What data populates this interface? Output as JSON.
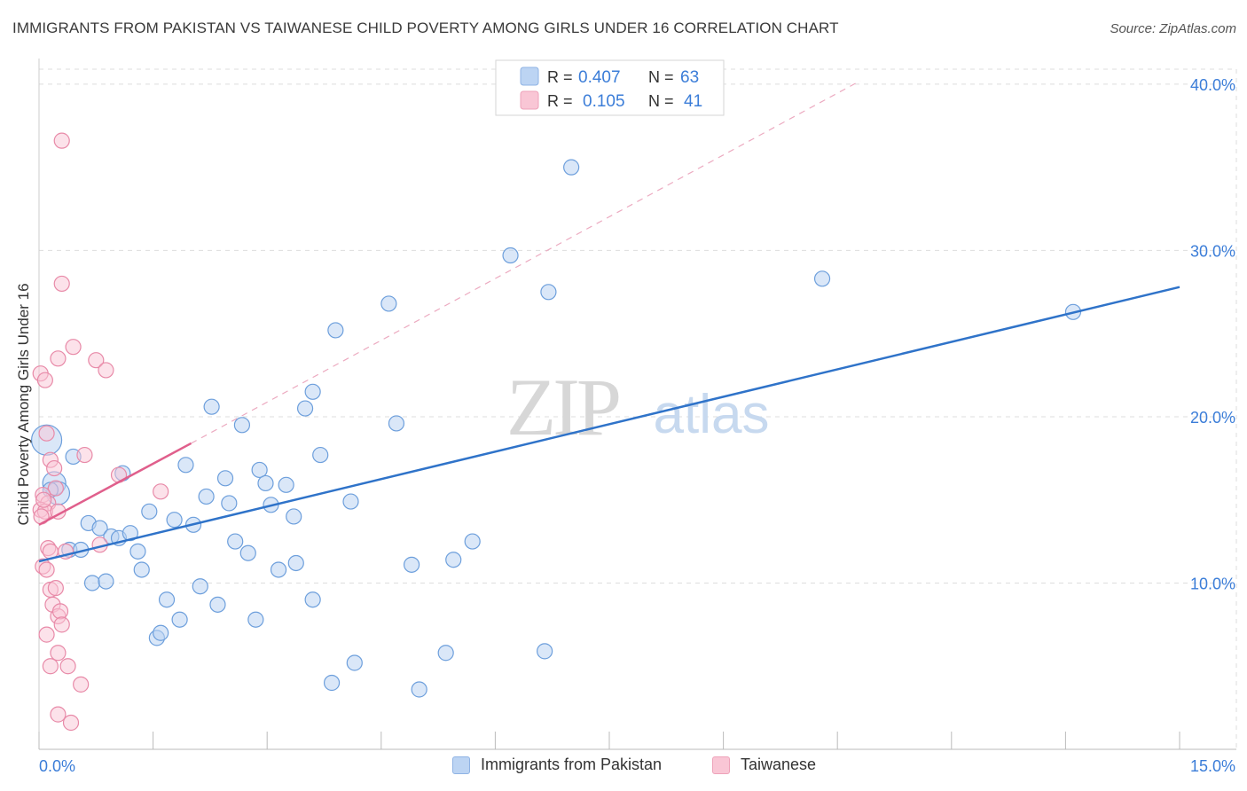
{
  "title": "IMMIGRANTS FROM PAKISTAN VS TAIWANESE CHILD POVERTY AMONG GIRLS UNDER 16 CORRELATION CHART",
  "source": "Source: ZipAtlas.com",
  "watermark": {
    "zip": "ZIP",
    "atlas": "atlas"
  },
  "legend_top": {
    "r_label": "R =",
    "n_label": "N =",
    "series": [
      {
        "r": "0.407",
        "n": "63"
      },
      {
        "r": "0.105",
        "n": "41"
      }
    ]
  },
  "legend_bottom": {
    "series1": "Immigrants from Pakistan",
    "series2": "Taiwanese"
  },
  "colors": {
    "blue_fill": "#bcd4f3",
    "blue_stroke": "#6d9fdc",
    "blue_line": "#2f73c9",
    "pink_fill": "#f9c6d5",
    "pink_stroke": "#e88aa8",
    "pink_line": "#e05f8c",
    "accent_text": "#3b7dd8",
    "grid": "#dddddd"
  },
  "chart_data": {
    "type": "scatter",
    "title": "IMMIGRANTS FROM PAKISTAN VS TAIWANESE CHILD POVERTY AMONG GIRLS UNDER 16 CORRELATION CHART",
    "xlabel": "",
    "ylabel": "Child Poverty Among Girls Under 16",
    "xlim": [
      0,
      15
    ],
    "ylim": [
      0,
      40.9
    ],
    "x_tick_labels": [
      "0.0%",
      "15.0%"
    ],
    "y_ticks": [
      10,
      20,
      30,
      40
    ],
    "y_tick_labels": [
      "10.0%",
      "20.0%",
      "30.0%",
      "40.0%"
    ],
    "grid": true,
    "legend_position": "top-center",
    "series": [
      {
        "name": "Immigrants from Pakistan",
        "color": "#6d9fdc",
        "R": 0.407,
        "N": 63,
        "trend": {
          "x": [
            0,
            15
          ],
          "y": [
            11.3,
            27.8
          ],
          "style": "solid"
        },
        "points": [
          [
            0.1,
            18.6
          ],
          [
            0.2,
            16.0
          ],
          [
            0.25,
            15.4
          ],
          [
            0.45,
            17.6
          ],
          [
            0.4,
            12.0
          ],
          [
            0.55,
            12.0
          ],
          [
            0.65,
            13.6
          ],
          [
            0.7,
            10.0
          ],
          [
            0.8,
            13.3
          ],
          [
            0.88,
            10.1
          ],
          [
            0.95,
            12.8
          ],
          [
            1.05,
            12.7
          ],
          [
            1.1,
            16.6
          ],
          [
            1.2,
            13.0
          ],
          [
            1.3,
            11.9
          ],
          [
            1.35,
            10.8
          ],
          [
            1.45,
            14.3
          ],
          [
            1.55,
            6.7
          ],
          [
            1.6,
            7.0
          ],
          [
            1.68,
            9.0
          ],
          [
            1.78,
            13.8
          ],
          [
            1.85,
            7.8
          ],
          [
            1.93,
            17.1
          ],
          [
            2.03,
            13.5
          ],
          [
            2.12,
            9.8
          ],
          [
            2.2,
            15.2
          ],
          [
            2.27,
            20.6
          ],
          [
            2.35,
            8.7
          ],
          [
            2.45,
            16.3
          ],
          [
            2.5,
            14.8
          ],
          [
            2.58,
            12.5
          ],
          [
            2.67,
            19.5
          ],
          [
            2.75,
            11.8
          ],
          [
            2.85,
            7.8
          ],
          [
            2.9,
            16.8
          ],
          [
            2.98,
            16.0
          ],
          [
            3.05,
            14.7
          ],
          [
            3.15,
            10.8
          ],
          [
            3.25,
            15.9
          ],
          [
            3.35,
            14.0
          ],
          [
            3.38,
            11.2
          ],
          [
            3.5,
            20.5
          ],
          [
            3.6,
            21.5
          ],
          [
            3.6,
            9.0
          ],
          [
            3.7,
            17.7
          ],
          [
            3.85,
            4.0
          ],
          [
            3.9,
            25.2
          ],
          [
            4.1,
            14.9
          ],
          [
            4.15,
            5.2
          ],
          [
            4.6,
            26.8
          ],
          [
            4.7,
            19.6
          ],
          [
            4.9,
            11.1
          ],
          [
            5.0,
            3.6
          ],
          [
            5.35,
            5.8
          ],
          [
            5.45,
            11.4
          ],
          [
            5.7,
            12.5
          ],
          [
            6.2,
            29.7
          ],
          [
            6.65,
            5.9
          ],
          [
            6.7,
            27.5
          ],
          [
            7.0,
            35.0
          ],
          [
            10.3,
            28.3
          ],
          [
            13.6,
            26.3
          ],
          [
            0.15,
            15.6
          ]
        ]
      },
      {
        "name": "Taiwanese",
        "color": "#e88aa8",
        "R": 0.105,
        "N": 41,
        "trend": {
          "x": [
            0,
            2.0
          ],
          "y": [
            13.5,
            18.4
          ],
          "style": "solid"
        },
        "trend_extended": {
          "x": [
            2.0,
            10.8
          ],
          "y": [
            18.4,
            40.2
          ],
          "style": "dashed"
        },
        "points": [
          [
            0.3,
            36.6
          ],
          [
            0.3,
            28.0
          ],
          [
            0.45,
            24.2
          ],
          [
            0.25,
            23.5
          ],
          [
            0.75,
            23.4
          ],
          [
            0.88,
            22.8
          ],
          [
            0.02,
            22.6
          ],
          [
            0.08,
            22.2
          ],
          [
            0.1,
            19.0
          ],
          [
            0.6,
            17.7
          ],
          [
            0.15,
            17.4
          ],
          [
            0.2,
            16.9
          ],
          [
            1.05,
            16.5
          ],
          [
            0.22,
            15.7
          ],
          [
            1.6,
            15.5
          ],
          [
            0.05,
            15.3
          ],
          [
            0.12,
            14.8
          ],
          [
            0.02,
            14.4
          ],
          [
            0.08,
            14.3
          ],
          [
            0.25,
            14.3
          ],
          [
            0.03,
            14.0
          ],
          [
            0.8,
            12.3
          ],
          [
            0.12,
            12.1
          ],
          [
            0.15,
            11.9
          ],
          [
            0.35,
            11.9
          ],
          [
            0.05,
            11.0
          ],
          [
            0.1,
            10.8
          ],
          [
            0.15,
            9.6
          ],
          [
            0.22,
            9.7
          ],
          [
            0.18,
            8.7
          ],
          [
            0.25,
            8.0
          ],
          [
            0.28,
            8.3
          ],
          [
            0.3,
            7.5
          ],
          [
            0.1,
            6.9
          ],
          [
            0.25,
            5.8
          ],
          [
            0.15,
            5.0
          ],
          [
            0.38,
            5.0
          ],
          [
            0.55,
            3.9
          ],
          [
            0.25,
            2.1
          ],
          [
            0.42,
            1.6
          ],
          [
            0.06,
            15.0
          ]
        ]
      }
    ]
  }
}
